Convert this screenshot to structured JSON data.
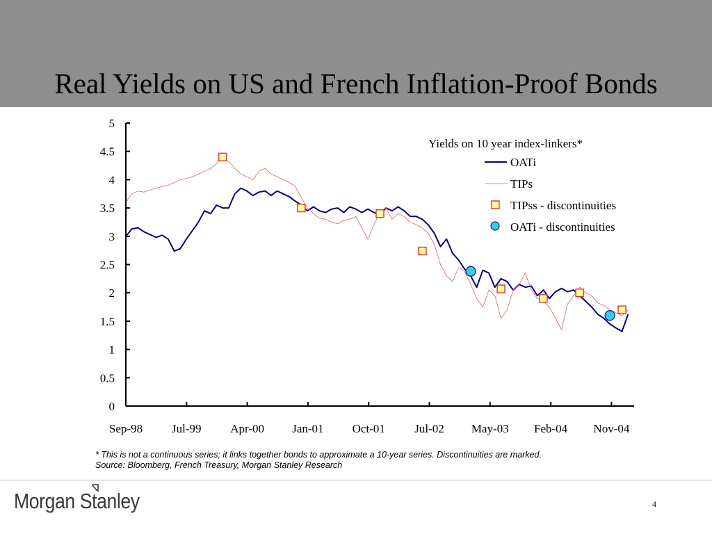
{
  "slide": {
    "title": "Real Yields on US and French Inflation-Proof Bonds",
    "footnote_line1": "* This is not a continuous series; it links together bonds to approximate a 10-year series.  Discontinuities are marked.",
    "footnote_line2": "Source: Bloomberg, French Treasury, Morgan Stanley Research",
    "logo_text": "Morgan Stanley",
    "page_number": "4",
    "colors": {
      "header": "#8e8e8e",
      "background": "#ffffff"
    }
  },
  "chart_data": {
    "type": "line",
    "x_unit": "months since Sep-98",
    "x_ticks": [
      "Sep-98",
      "Jul-99",
      "Apr-00",
      "Jan-01",
      "Oct-01",
      "Jul-02",
      "May-03",
      "Feb-04",
      "Nov-04"
    ],
    "y_ticks": [
      "5",
      "4.5",
      "4",
      "3.5",
      "3",
      "2.5",
      "2",
      "1.5",
      "1",
      "0.5",
      "0"
    ],
    "ylim": [
      0,
      5
    ],
    "legend_title": "Yields on 10 year index-linkers*",
    "legend_position": "top-right",
    "grid": false,
    "series": [
      {
        "name": "OATi",
        "style": "line",
        "color": "#000080",
        "points": [
          [
            0,
            3.0
          ],
          [
            1,
            3.13
          ],
          [
            2,
            3.15
          ],
          [
            3,
            3.08
          ],
          [
            4,
            3.03
          ],
          [
            5,
            2.98
          ],
          [
            6,
            3.02
          ],
          [
            7,
            2.95
          ],
          [
            8,
            2.74
          ],
          [
            9,
            2.78
          ],
          [
            10,
            2.95
          ],
          [
            11,
            3.1
          ],
          [
            12,
            3.25
          ],
          [
            13,
            3.45
          ],
          [
            14,
            3.4
          ],
          [
            15,
            3.55
          ],
          [
            16,
            3.5
          ],
          [
            17,
            3.5
          ],
          [
            18,
            3.75
          ],
          [
            19,
            3.85
          ],
          [
            20,
            3.8
          ],
          [
            21,
            3.72
          ],
          [
            22,
            3.78
          ],
          [
            23,
            3.8
          ],
          [
            24,
            3.72
          ],
          [
            25,
            3.8
          ],
          [
            26,
            3.75
          ],
          [
            27,
            3.7
          ],
          [
            28,
            3.62
          ],
          [
            29,
            3.55
          ],
          [
            30,
            3.45
          ],
          [
            31,
            3.52
          ],
          [
            32,
            3.45
          ],
          [
            33,
            3.42
          ],
          [
            34,
            3.48
          ],
          [
            35,
            3.5
          ],
          [
            36,
            3.42
          ],
          [
            37,
            3.52
          ],
          [
            38,
            3.48
          ],
          [
            39,
            3.42
          ],
          [
            40,
            3.48
          ],
          [
            41,
            3.42
          ],
          [
            42,
            3.38
          ],
          [
            43,
            3.5
          ],
          [
            44,
            3.45
          ],
          [
            45,
            3.52
          ],
          [
            46,
            3.45
          ],
          [
            47,
            3.35
          ],
          [
            48,
            3.35
          ],
          [
            49,
            3.3
          ],
          [
            50,
            3.2
          ],
          [
            51,
            3.05
          ],
          [
            52,
            2.82
          ],
          [
            53,
            2.95
          ],
          [
            54,
            2.7
          ],
          [
            55,
            2.58
          ],
          [
            56,
            2.42
          ],
          [
            57,
            2.3
          ],
          [
            58,
            2.1
          ],
          [
            59,
            2.4
          ],
          [
            60,
            2.35
          ],
          [
            61,
            2.1
          ],
          [
            62,
            2.25
          ],
          [
            63,
            2.2
          ],
          [
            64,
            2.05
          ],
          [
            65,
            2.15
          ],
          [
            66,
            2.1
          ],
          [
            67,
            2.12
          ],
          [
            68,
            1.95
          ],
          [
            69,
            2.05
          ],
          [
            70,
            1.9
          ],
          [
            71,
            2.02
          ],
          [
            72,
            2.08
          ],
          [
            73,
            2.02
          ],
          [
            74,
            2.05
          ],
          [
            75,
            1.95
          ],
          [
            76,
            1.85
          ],
          [
            77,
            1.75
          ],
          [
            78,
            1.62
          ],
          [
            79,
            1.55
          ],
          [
            80,
            1.45
          ],
          [
            81,
            1.38
          ],
          [
            82,
            1.32
          ],
          [
            83,
            1.62
          ]
        ]
      },
      {
        "name": "TIPs",
        "style": "thin-line",
        "color": "#e06060",
        "points": [
          [
            0,
            3.6
          ],
          [
            1,
            3.75
          ],
          [
            2,
            3.8
          ],
          [
            3,
            3.78
          ],
          [
            4,
            3.82
          ],
          [
            5,
            3.85
          ],
          [
            6,
            3.88
          ],
          [
            7,
            3.9
          ],
          [
            8,
            3.95
          ],
          [
            9,
            4.0
          ],
          [
            10,
            4.02
          ],
          [
            11,
            4.05
          ],
          [
            12,
            4.1
          ],
          [
            13,
            4.15
          ],
          [
            14,
            4.2
          ],
          [
            15,
            4.28
          ],
          [
            16,
            4.4
          ],
          [
            17,
            4.32
          ],
          [
            18,
            4.2
          ],
          [
            19,
            4.1
          ],
          [
            20,
            4.05
          ],
          [
            21,
            4.0
          ],
          [
            22,
            4.15
          ],
          [
            23,
            4.2
          ],
          [
            24,
            4.1
          ],
          [
            25,
            4.05
          ],
          [
            26,
            4.0
          ],
          [
            27,
            3.95
          ],
          [
            28,
            3.88
          ],
          [
            29,
            3.68
          ],
          [
            30,
            3.5
          ],
          [
            31,
            3.4
          ],
          [
            32,
            3.32
          ],
          [
            33,
            3.3
          ],
          [
            34,
            3.25
          ],
          [
            35,
            3.22
          ],
          [
            36,
            3.28
          ],
          [
            37,
            3.3
          ],
          [
            38,
            3.35
          ],
          [
            39,
            3.15
          ],
          [
            40,
            2.95
          ],
          [
            41,
            3.2
          ],
          [
            42,
            3.45
          ],
          [
            43,
            3.5
          ],
          [
            44,
            3.3
          ],
          [
            45,
            3.4
          ],
          [
            46,
            3.35
          ],
          [
            47,
            3.25
          ],
          [
            48,
            3.2
          ],
          [
            49,
            3.15
          ],
          [
            50,
            3.05
          ],
          [
            51,
            2.85
          ],
          [
            52,
            2.5
          ],
          [
            53,
            2.3
          ],
          [
            54,
            2.2
          ],
          [
            55,
            2.45
          ],
          [
            56,
            2.38
          ],
          [
            57,
            2.15
          ],
          [
            58,
            1.9
          ],
          [
            59,
            1.75
          ],
          [
            60,
            2.05
          ],
          [
            61,
            1.95
          ],
          [
            62,
            1.55
          ],
          [
            63,
            1.7
          ],
          [
            64,
            2.05
          ],
          [
            65,
            2.15
          ],
          [
            66,
            2.35
          ],
          [
            67,
            2.05
          ],
          [
            68,
            1.9
          ],
          [
            69,
            1.85
          ],
          [
            70,
            1.75
          ],
          [
            71,
            1.55
          ],
          [
            72,
            1.35
          ],
          [
            73,
            1.8
          ],
          [
            74,
            1.95
          ],
          [
            75,
            2.1
          ],
          [
            76,
            2.0
          ],
          [
            77,
            1.95
          ],
          [
            78,
            1.82
          ],
          [
            79,
            1.78
          ],
          [
            80,
            1.7
          ],
          [
            81,
            1.65
          ],
          [
            82,
            1.6
          ],
          [
            83,
            1.7
          ]
        ]
      },
      {
        "name": "TIPss - discontinuities",
        "style": "square-markers",
        "fill": "#ffff99",
        "stroke": "#e03030",
        "points": [
          [
            16,
            4.4
          ],
          [
            29,
            3.5
          ],
          [
            42,
            3.4
          ],
          [
            49,
            2.74
          ],
          [
            62,
            2.07
          ],
          [
            69,
            1.9
          ],
          [
            75,
            2.0
          ],
          [
            82,
            1.7
          ]
        ]
      },
      {
        "name": "OATi - discontinuities",
        "style": "circle-markers",
        "fill": "#33ccee",
        "stroke": "#1a1a6a",
        "points": [
          [
            57,
            2.38
          ],
          [
            80,
            1.6
          ]
        ]
      }
    ]
  }
}
